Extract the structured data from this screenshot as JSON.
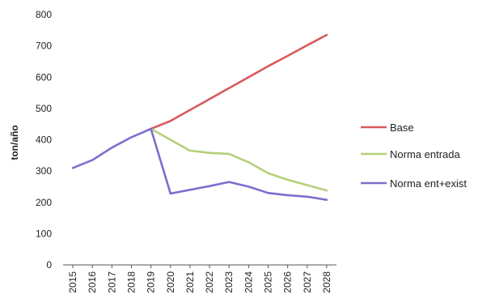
{
  "chart_data": {
    "type": "line",
    "ylabel": "ton/año",
    "xlabel": "",
    "ylim": [
      0,
      800
    ],
    "yticks": [
      0,
      100,
      200,
      300,
      400,
      500,
      600,
      700,
      800
    ],
    "x": [
      "2015",
      "2016",
      "2017",
      "2018",
      "2019",
      "2020",
      "2021",
      "2022",
      "2023",
      "2024",
      "2025",
      "2026",
      "2027",
      "2028"
    ],
    "series": [
      {
        "name": "Base",
        "color": "#d9595b",
        "values": [
          null,
          null,
          null,
          null,
          435,
          460,
          495,
          530,
          565,
          600,
          635,
          668,
          702,
          735
        ]
      },
      {
        "name": "Norma entrada",
        "color": "#b5cf7a",
        "values": [
          null,
          null,
          null,
          null,
          435,
          400,
          365,
          358,
          355,
          328,
          293,
          272,
          255,
          238
        ]
      },
      {
        "name": "Norma ent+exist",
        "color": "#7b6fd0",
        "values": [
          310,
          335,
          375,
          408,
          435,
          228,
          240,
          252,
          265,
          250,
          230,
          223,
          218,
          208
        ]
      }
    ],
    "grid": false,
    "legend": "right"
  }
}
